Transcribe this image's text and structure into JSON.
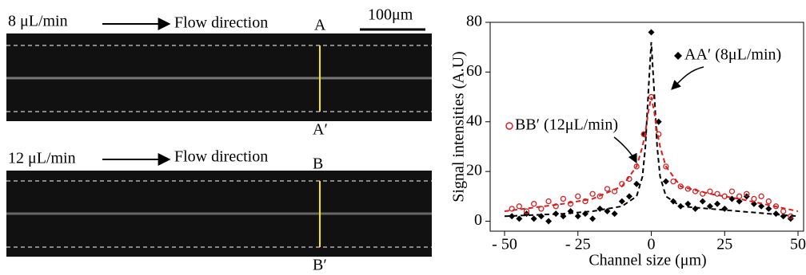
{
  "images": {
    "top": {
      "rate": "8 μL/min",
      "direction": "Flow direction",
      "start": "A",
      "end": "A′",
      "scale": "100μm"
    },
    "bottom": {
      "rate": "12 μL/min",
      "direction": "Flow direction",
      "start": "B",
      "end": "B′"
    }
  },
  "chart_data": {
    "type": "scatter",
    "xlabel": "Channel size (μm)",
    "ylabel": "Signal intensities (A.U)",
    "xlim": [
      -50,
      50
    ],
    "ylim": [
      -4,
      80
    ],
    "xticks": [
      {
        "value": -50,
        "label": "- 50"
      },
      {
        "value": -25,
        "label": "- 25"
      },
      0,
      25,
      50
    ],
    "yticks": [
      0,
      20,
      40,
      60,
      80
    ],
    "series": [
      {
        "name": "AA′ (8μL/min)",
        "color": "#000000",
        "marker": "diamond",
        "x": [
          -47.5,
          -45,
          -42.5,
          -40,
          -37.5,
          -35,
          -32.5,
          -30,
          -27.5,
          -25,
          -22.5,
          -20,
          -17.5,
          -15,
          -12.5,
          -10,
          -7.5,
          -5,
          -2.5,
          0,
          2.5,
          5,
          7.5,
          10,
          12.5,
          15,
          17.5,
          20,
          22.5,
          25,
          27.5,
          30,
          32.5,
          35,
          37.5,
          40,
          42.5,
          45,
          47.5
        ],
        "values": [
          2,
          1,
          3,
          1,
          2,
          0,
          3,
          2,
          4,
          2,
          3,
          1,
          5,
          4,
          3,
          8,
          10,
          15,
          35,
          76,
          40,
          16,
          8,
          6,
          7,
          5,
          8,
          6,
          7,
          5,
          9,
          8,
          10,
          7,
          6,
          5,
          3,
          2,
          1
        ]
      },
      {
        "name": "BB′ (12μL/min)",
        "color": "#d62020",
        "marker": "circle",
        "x": [
          -47.5,
          -45,
          -42.5,
          -40,
          -37.5,
          -35,
          -32.5,
          -30,
          -27.5,
          -25,
          -22.5,
          -20,
          -17.5,
          -15,
          -12.5,
          -10,
          -7.5,
          -5,
          -2.5,
          0,
          2.5,
          5,
          7.5,
          10,
          12.5,
          15,
          17.5,
          20,
          22.5,
          25,
          27.5,
          30,
          32.5,
          35,
          37.5,
          40,
          42.5,
          45,
          47.5
        ],
        "values": [
          5,
          6,
          4,
          7,
          5,
          8,
          6,
          9,
          7,
          10,
          8,
          11,
          10,
          13,
          12,
          15,
          17,
          22,
          35,
          50,
          35,
          22,
          16,
          14,
          13,
          12,
          11,
          12,
          11,
          10,
          12,
          10,
          11,
          9,
          10,
          8,
          6,
          4,
          2
        ]
      },
      {
        "color": "#000000",
        "marker": "dashed-line",
        "x": [
          -50,
          -30,
          -20,
          -10,
          -5,
          -3,
          -2,
          -1,
          0,
          1,
          2,
          3,
          5,
          10,
          20,
          30,
          50
        ],
        "values": [
          2,
          3,
          4,
          6,
          10,
          18,
          30,
          52,
          72,
          52,
          30,
          18,
          10,
          6,
          5,
          4,
          2
        ]
      },
      {
        "color": "#d62020",
        "marker": "dashed-line",
        "x": [
          -50,
          -30,
          -20,
          -10,
          -5,
          -3,
          -2,
          -1,
          0,
          1,
          2,
          3,
          5,
          10,
          20,
          30,
          50
        ],
        "values": [
          4,
          7,
          9,
          14,
          22,
          30,
          36,
          44,
          50,
          44,
          36,
          30,
          22,
          14,
          11,
          9,
          4
        ]
      }
    ]
  }
}
